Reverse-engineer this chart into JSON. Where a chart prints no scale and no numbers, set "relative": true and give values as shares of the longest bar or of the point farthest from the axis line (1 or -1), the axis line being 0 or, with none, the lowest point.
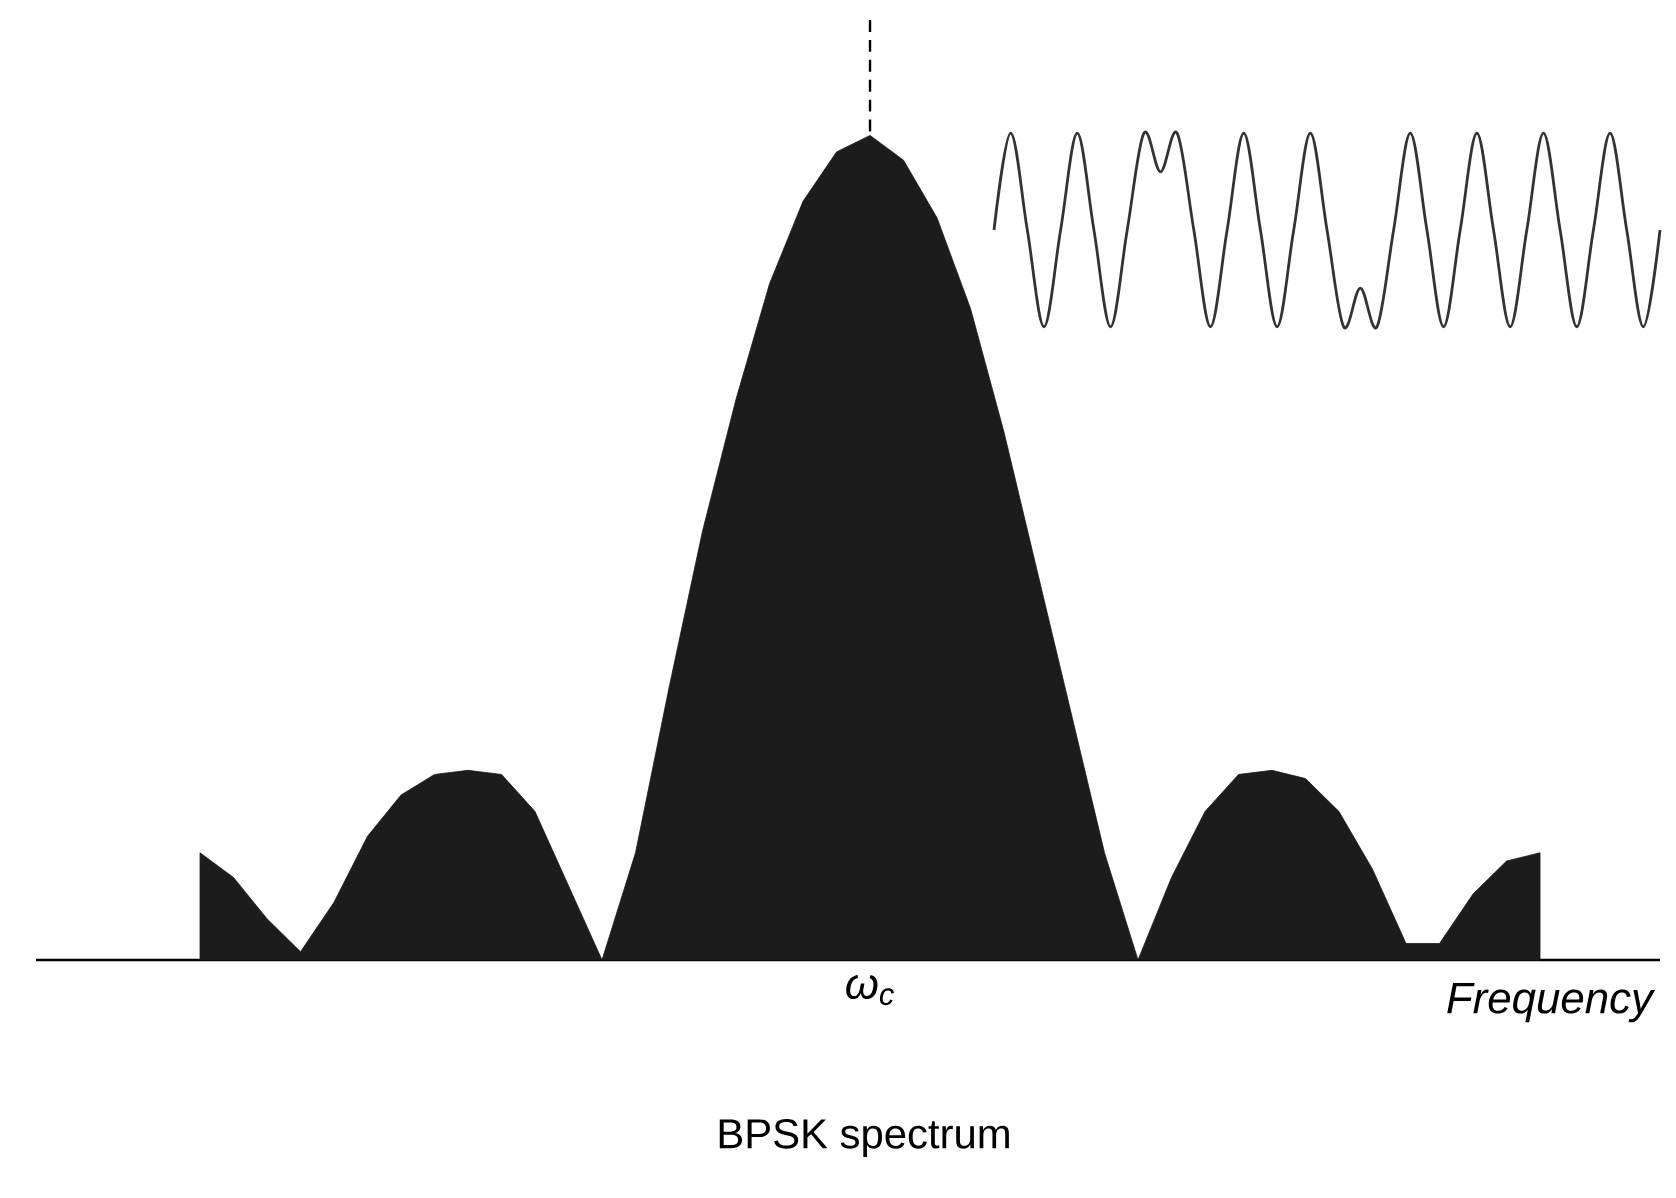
{
  "chart_data": [
    {
      "type": "area",
      "relative": true,
      "title": "BPSK spectrum",
      "xlabel": "Frequency",
      "annotations": [
        "ω$_{c}$"
      ],
      "categories": [
        null,
        null,
        null,
        null,
        null,
        null,
        null,
        null,
        null,
        null,
        null,
        null,
        null,
        null,
        null,
        null,
        null,
        null,
        null,
        null,
        null,
        null,
        null,
        null,
        null,
        null,
        null,
        null,
        null,
        null,
        null,
        null,
        null,
        null,
        null,
        null,
        null,
        null,
        null,
        null,
        null
      ],
      "values": [
        0.13,
        0.1,
        0.05,
        0.01,
        0.07,
        0.15,
        0.2,
        0.225,
        0.23,
        0.225,
        0.18,
        0.09,
        0.0,
        0.13,
        0.33,
        0.52,
        0.68,
        0.82,
        0.92,
        0.98,
        1.0,
        0.97,
        0.9,
        0.79,
        0.64,
        0.47,
        0.3,
        0.13,
        0.0,
        0.1,
        0.18,
        0.225,
        0.23,
        0.22,
        0.18,
        0.11,
        0.02,
        0.02,
        0.08,
        0.12,
        0.13
      ],
      "color": "#1c1c1c"
    },
    {
      "type": "line",
      "relative": true,
      "categories": [
        null,
        null,
        null,
        null,
        null,
        null,
        null,
        null,
        null,
        null,
        null,
        null,
        null,
        null,
        null,
        null,
        null,
        null,
        null,
        null,
        null,
        null,
        null,
        null,
        null,
        null,
        null,
        null,
        null,
        null,
        null,
        null,
        null,
        null,
        null,
        null,
        null,
        null,
        null,
        null,
        null
      ],
      "values": [
        0.5,
        1,
        0.5,
        0,
        0.5,
        1,
        0.5,
        0,
        0.5,
        1,
        0.8,
        1,
        0.5,
        0,
        0.5,
        1,
        0.5,
        0,
        0.5,
        1,
        0.5,
        0,
        0.2,
        0,
        0.5,
        1,
        0.5,
        0,
        0.5,
        1,
        0.5,
        0,
        0.5,
        1,
        0.5,
        0,
        0.5,
        1,
        0.5,
        0,
        0.5
      ],
      "color": "#333333"
    }
  ]
}
